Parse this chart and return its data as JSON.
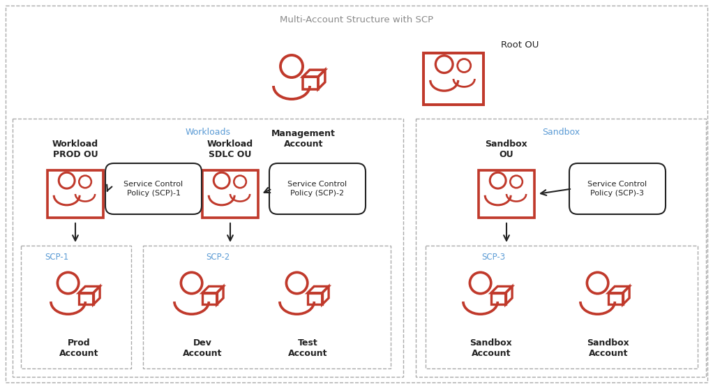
{
  "title": "Multi-Account Structure with SCP",
  "title_color": "#8a8a8a",
  "red": "#c0392b",
  "black": "#222222",
  "bg": "#ffffff",
  "border_dash": "#aaaaaa",
  "blue_label": "#5b9bd5",
  "workloads_label": "Workloads",
  "sandbox_label": "Sandbox",
  "mgmt_label": "Management\nAccount",
  "rootou_label": "Root OU",
  "prod_ou_label": "Workload\nPROD OU",
  "sdlc_ou_label": "Workload\nSDLC OU",
  "sandbox_ou_label": "Sandbox\nOU",
  "scp1_box_label": "Service Control\nPolicy (SCP)-1",
  "scp2_box_label": "Service Control\nPolicy (SCP)-2",
  "scp3_box_label": "Service Control\nPolicy (SCP)-3",
  "scp1_label": "SCP-1",
  "scp2_label": "SCP-2",
  "scp3_label": "SCP-3",
  "prod_account_label": "Prod\nAccount",
  "dev_account_label": "Dev\nAccount",
  "test_account_label": "Test\nAccount",
  "sandbox1_account_label": "Sandbox\nAccount",
  "sandbox2_account_label": "Sandbox\nAccount"
}
